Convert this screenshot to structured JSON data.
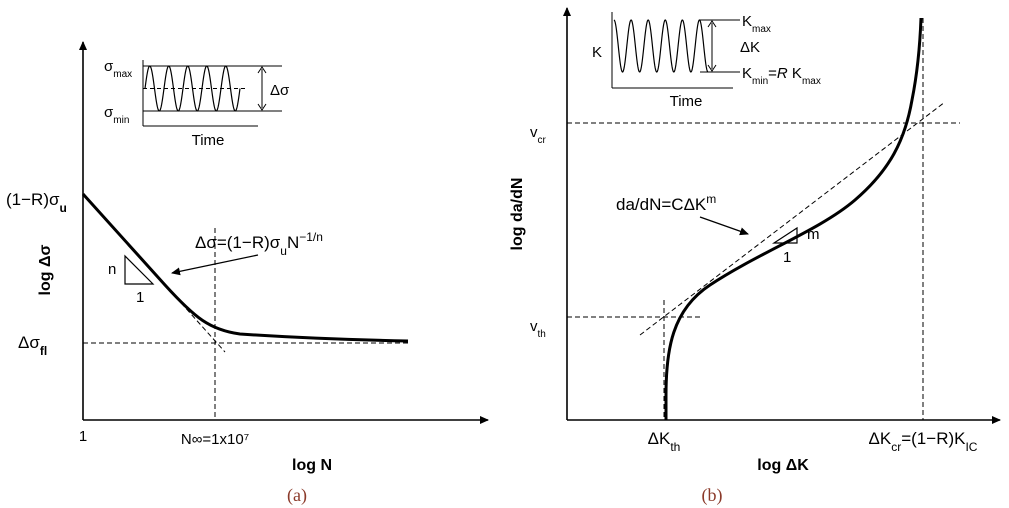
{
  "panel_a": {
    "caption": "(a)",
    "y_axis_label": "log Δσ",
    "x_axis_label": "log N",
    "x_tick_start": "1",
    "endurance_cycles": "N∞=1x10⁷",
    "y_intercept_label": "(1−R)σ",
    "y_intercept_sub": "u",
    "fatigue_limit_label": "Δσ",
    "fatigue_limit_sub": "fl",
    "equation": {
      "lhs": "Δσ=(1−R)σ",
      "sub": "u",
      "mid": "N",
      "sup": "−1/n"
    },
    "slope_triangle": {
      "rise": "n",
      "run": "1"
    },
    "inset": {
      "max_label": "σ",
      "max_sub": "max",
      "min_label": "σ",
      "min_sub": "min",
      "range_label": "Δσ",
      "time_label": "Time"
    }
  },
  "panel_b": {
    "caption": "(b)",
    "y_axis_label": "log da/dN",
    "x_axis_label": "log ΔK",
    "threshold_label": "ΔK",
    "threshold_sub": "th",
    "critical_label": "ΔK",
    "critical_sub": "cr",
    "critical_expr": "=(1−R)K",
    "critical_expr_sub": "IC",
    "v_cr_label": "v",
    "v_cr_sub": "cr",
    "v_th_label": "v",
    "v_th_sub": "th",
    "equation": {
      "lhs": "da/dN=CΔK",
      "sup": "m"
    },
    "slope_triangle": {
      "rise": "m",
      "run": "1"
    },
    "inset": {
      "y_label": "K",
      "kmax_label": "K",
      "kmax_sub": "max",
      "dk_label": "ΔK",
      "kmin_label": "K",
      "kmin_sub": "min",
      "kmin_eq": "=",
      "kmin_r": "R",
      "kmin_k": " K",
      "kmin_k_sub": "max",
      "time_label": "Time"
    }
  }
}
